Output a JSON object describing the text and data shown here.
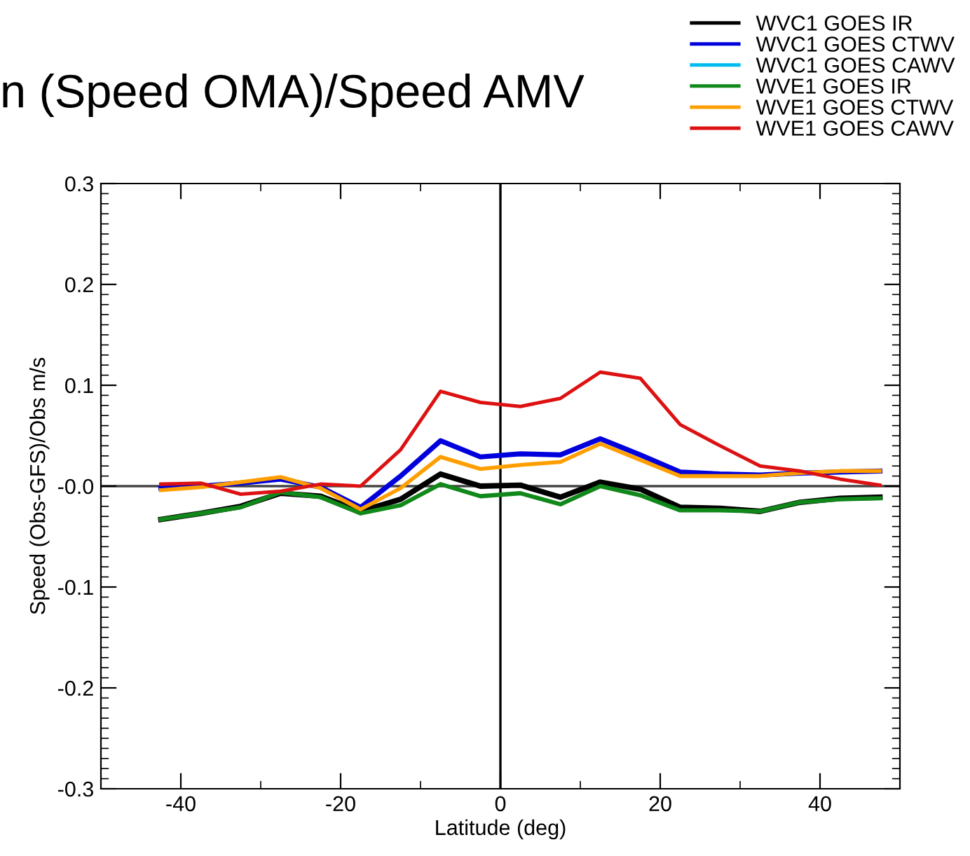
{
  "chart_data": {
    "type": "line",
    "title": "n (Speed OMA)/Speed AMV",
    "xlabel": "Latitude (deg)",
    "ylabel": "Speed (Obs-GFS)/Obs m/s",
    "x": [
      -42.5,
      -37.5,
      -32.5,
      -27.5,
      -22.5,
      -17.5,
      -12.5,
      -7.5,
      -2.5,
      2.5,
      7.5,
      12.5,
      17.5,
      22.5,
      27.5,
      32.5,
      37.5,
      42.5,
      47.5
    ],
    "series": [
      {
        "name": "WVC1 GOES IR",
        "color": "#000000",
        "values": [
          -0.033,
          -0.027,
          -0.02,
          -0.007,
          -0.01,
          -0.025,
          -0.013,
          0.012,
          0.0,
          0.001,
          -0.011,
          0.004,
          -0.003,
          -0.021,
          -0.022,
          -0.025,
          -0.016,
          -0.012,
          -0.011
        ]
      },
      {
        "name": "WVC1 GOES CTWV",
        "color": "#0000dd",
        "values": [
          -0.002,
          0.0,
          0.003,
          0.007,
          -0.001,
          -0.021,
          0.01,
          0.045,
          0.029,
          0.032,
          0.031,
          0.047,
          0.031,
          0.014,
          0.012,
          0.011,
          0.013,
          0.014,
          0.015
        ]
      },
      {
        "name": "WVC1 GOES CAWV",
        "color": "#00bbee",
        "values": [
          null,
          null,
          null,
          null,
          null,
          null,
          null,
          null,
          null,
          null,
          null,
          null,
          null,
          null,
          null,
          null,
          null,
          null,
          null
        ]
      },
      {
        "name": "WVE1 GOES IR",
        "color": "#11881a",
        "values": [
          -0.033,
          -0.027,
          -0.021,
          -0.006,
          -0.011,
          -0.027,
          -0.019,
          0.002,
          -0.01,
          -0.007,
          -0.018,
          0.0,
          -0.009,
          -0.024,
          -0.024,
          -0.025,
          -0.016,
          -0.013,
          -0.012
        ]
      },
      {
        "name": "WVE1 GOES CTWV",
        "color": "#ff9e00",
        "values": [
          -0.004,
          -0.001,
          0.004,
          0.009,
          -0.002,
          -0.023,
          -0.002,
          0.029,
          0.017,
          0.021,
          0.024,
          0.042,
          0.026,
          0.01,
          0.01,
          0.01,
          0.013,
          0.015,
          0.015
        ]
      },
      {
        "name": "WVE1 GOES CAWV",
        "color": "#dd1111",
        "values": [
          0.002,
          0.003,
          -0.008,
          -0.005,
          0.002,
          0.0,
          0.036,
          0.094,
          0.083,
          0.079,
          0.087,
          0.113,
          0.107,
          0.061,
          0.04,
          0.02,
          0.015,
          0.007,
          0.001
        ]
      }
    ],
    "xlim": [
      -50,
      50
    ],
    "xticks": [
      -40,
      -20,
      0,
      20,
      40
    ],
    "ylim": [
      -0.3,
      0.3
    ],
    "yticks": [
      -0.3,
      -0.2,
      -0.1,
      {
        "value": 0,
        "label": "-0.0"
      },
      0.1,
      0.2,
      0.3
    ],
    "ref_lines": [
      {
        "axis": "x",
        "value": 0,
        "color": "#000000"
      },
      {
        "axis": "y",
        "value": 0,
        "color": "#444444"
      }
    ],
    "legend": "top right",
    "grid": false,
    "marker": "none",
    "line_style": "solid"
  }
}
